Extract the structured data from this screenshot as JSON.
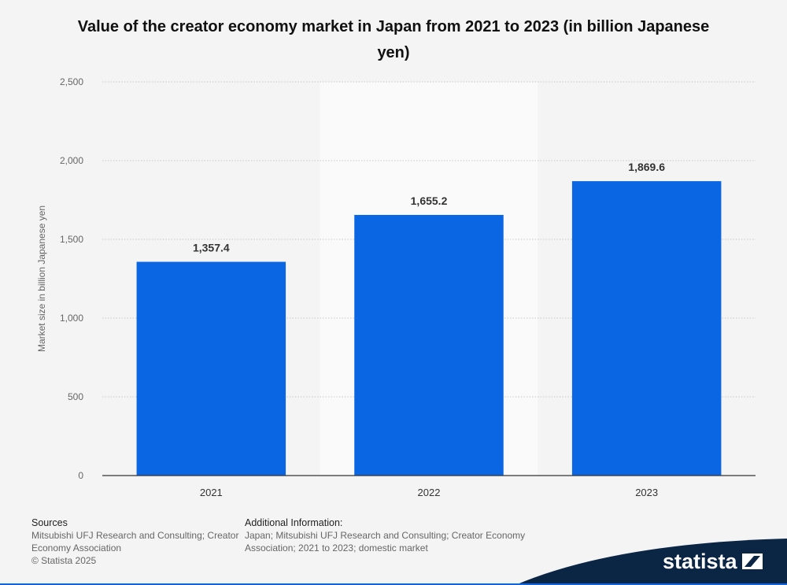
{
  "chart_data": {
    "type": "bar",
    "title": "Value of the creator economy market in Japan from 2021 to 2023 (in billion Japanese yen)",
    "categories": [
      "2021",
      "2022",
      "2023"
    ],
    "values": [
      1357.4,
      1655.2,
      1869.6
    ],
    "value_labels": [
      "1,357.4",
      "1,655.2",
      "1,869.6"
    ],
    "xlabel": "",
    "ylabel": "Market size in billion Japanese yen",
    "ylim": [
      0,
      2500
    ],
    "yticks": [
      0,
      500,
      1000,
      1500,
      2000,
      2500
    ],
    "ytick_labels": [
      "0",
      "500",
      "1,000",
      "1,500",
      "2,000",
      "2,500"
    ],
    "grid": true,
    "highlighted_category": "2022",
    "bar_color": "#0b66e4"
  },
  "footer": {
    "sources_heading": "Sources",
    "sources_text": "Mitsubishi UFJ Research and Consulting; Creator Economy Association",
    "copyright": "© Statista 2025",
    "additional_heading": "Additional Information:",
    "additional_text": "Japan; Mitsubishi UFJ Research and Consulting; Creator Economy Association; 2021 to 2023; domestic market"
  },
  "brand": {
    "name": "statista",
    "icon": "statista-logo-icon",
    "color": "#0b2545"
  }
}
